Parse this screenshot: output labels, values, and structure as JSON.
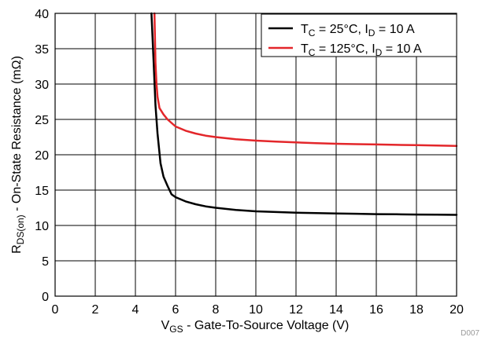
{
  "chart_data": {
    "type": "line",
    "xlabel": {
      "main": "V",
      "sub": "GS",
      "rest": " - Gate-To-Source Voltage (V)"
    },
    "ylabel": {
      "main": "R",
      "sub": "DS(on)",
      "rest": " - On-State Resistance (mΩ)"
    },
    "xlim": [
      0,
      20
    ],
    "ylim": [
      0,
      40
    ],
    "x_ticks": [
      "0",
      "2",
      "4",
      "6",
      "8",
      "10",
      "12",
      "14",
      "16",
      "18",
      "20"
    ],
    "y_ticks": [
      "0",
      "5",
      "10",
      "15",
      "20",
      "25",
      "30",
      "35",
      "40"
    ],
    "grid": true,
    "legend_position": "top-right",
    "series": [
      {
        "name": "TC = 25°C, ID = 10 A",
        "legend": {
          "t": "T",
          "tsub": "C",
          "tval": " = 25°C, I",
          "isub": "D",
          "ival": " = 10 A"
        },
        "color": "#000000",
        "x": [
          4.8,
          4.9,
          5.0,
          5.1,
          5.25,
          5.4,
          5.6,
          5.8,
          6.0,
          6.5,
          7.0,
          7.5,
          8.0,
          9.0,
          10.0,
          11.0,
          12.0,
          13.0,
          14.0,
          15.0,
          16.0,
          17.0,
          18.0,
          19.0,
          20.0
        ],
        "y": [
          40,
          33.5,
          27.0,
          23.0,
          18.8,
          16.9,
          15.6,
          14.4,
          14.0,
          13.4,
          13.0,
          12.7,
          12.5,
          12.2,
          12.0,
          11.9,
          11.8,
          11.75,
          11.7,
          11.65,
          11.6,
          11.58,
          11.55,
          11.52,
          11.5
        ]
      },
      {
        "name": "TC = 125°C, ID = 10 A",
        "legend": {
          "t": "T",
          "tsub": "C",
          "tval": " = 125°C, I",
          "isub": "D",
          "ival": " = 10 A"
        },
        "color": "#e3262a",
        "x": [
          4.95,
          5.0,
          5.05,
          5.1,
          5.2,
          5.4,
          5.6,
          5.8,
          6.0,
          6.5,
          7.0,
          7.5,
          8.0,
          9.0,
          10.0,
          11.0,
          12.0,
          13.0,
          14.0,
          15.0,
          16.0,
          17.0,
          18.0,
          19.0,
          20.0
        ],
        "y": [
          40,
          33.0,
          30.0,
          28.2,
          26.6,
          25.7,
          25.0,
          24.5,
          24.0,
          23.4,
          23.0,
          22.7,
          22.5,
          22.2,
          22.0,
          21.85,
          21.75,
          21.65,
          21.55,
          21.5,
          21.45,
          21.4,
          21.35,
          21.3,
          21.25
        ]
      }
    ],
    "corner_note": "D007"
  }
}
